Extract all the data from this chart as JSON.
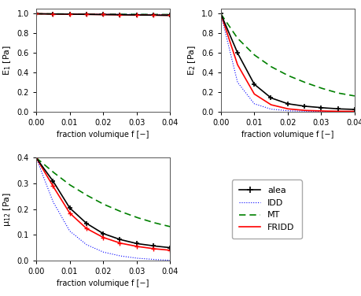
{
  "f": [
    0,
    0.005,
    0.01,
    0.015,
    0.02,
    0.025,
    0.03,
    0.035,
    0.04
  ],
  "E1_alea": [
    1.0,
    0.998,
    0.996,
    0.994,
    0.992,
    0.99,
    0.988,
    0.986,
    0.984
  ],
  "E1_IDD": [
    1.0,
    0.999,
    0.998,
    0.997,
    0.996,
    0.995,
    0.994,
    0.993,
    0.992
  ],
  "E1_MT": [
    1.0,
    0.999,
    0.998,
    0.997,
    0.996,
    0.995,
    0.994,
    0.993,
    0.992
  ],
  "E1_FRIDD": [
    1.0,
    0.998,
    0.996,
    0.994,
    0.992,
    0.99,
    0.988,
    0.986,
    0.984
  ],
  "E2_alea": [
    1.0,
    0.6,
    0.28,
    0.14,
    0.08,
    0.055,
    0.04,
    0.028,
    0.022
  ],
  "E2_IDD": [
    1.0,
    0.3,
    0.08,
    0.025,
    0.008,
    0.003,
    0.001,
    0.0005,
    0.0002
  ],
  "E2_MT": [
    1.0,
    0.75,
    0.58,
    0.46,
    0.37,
    0.3,
    0.24,
    0.19,
    0.16
  ],
  "E2_FRIDD": [
    1.0,
    0.48,
    0.18,
    0.07,
    0.028,
    0.012,
    0.006,
    0.003,
    0.002
  ],
  "mu12_alea": [
    0.4,
    0.31,
    0.205,
    0.145,
    0.105,
    0.082,
    0.066,
    0.057,
    0.05
  ],
  "mu12_IDD": [
    0.4,
    0.23,
    0.115,
    0.062,
    0.033,
    0.018,
    0.009,
    0.004,
    0.001
  ],
  "mu12_MT": [
    0.4,
    0.345,
    0.295,
    0.255,
    0.22,
    0.192,
    0.168,
    0.148,
    0.132
  ],
  "mu12_FRIDD": [
    0.4,
    0.29,
    0.185,
    0.125,
    0.09,
    0.068,
    0.055,
    0.046,
    0.04
  ],
  "color_alea": "#000000",
  "color_IDD": "#0000ff",
  "color_MT": "#008000",
  "color_FRIDD": "#ff0000",
  "xlabel": "fraction volumique f [−]",
  "ylabel_E1": "E$_1$ [Pa]",
  "ylabel_E2": "E$_2$ [Pa]",
  "ylabel_mu12": "μ$_{12}$ [Pa]",
  "xlim": [
    0,
    0.04
  ],
  "E1_ylim": [
    0,
    1.05
  ],
  "E2_ylim": [
    0,
    1.05
  ],
  "mu12_ylim": [
    0,
    0.4
  ],
  "f_ticks": [
    0,
    0.01,
    0.02,
    0.03,
    0.04
  ]
}
